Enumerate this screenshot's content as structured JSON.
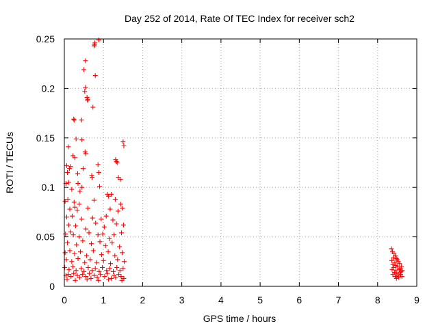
{
  "chart_data": {
    "type": "scatter",
    "title": "Day 252 of 2014, Rate Of TEC Index for receiver sch2",
    "xlabel": "GPS time / hours",
    "ylabel": "ROTI / TECUs",
    "xlim": [
      0,
      9
    ],
    "ylim": [
      0,
      0.25
    ],
    "grid": true,
    "marker": "+",
    "color": "#ff0000",
    "xticks": [
      {
        "value": 0,
        "label": "0"
      },
      {
        "value": 1,
        "label": "1"
      },
      {
        "value": 2,
        "label": "2"
      },
      {
        "value": 3,
        "label": "3"
      },
      {
        "value": 4,
        "label": "4"
      },
      {
        "value": 5,
        "label": "5"
      },
      {
        "value": 6,
        "label": "6"
      },
      {
        "value": 7,
        "label": "7"
      },
      {
        "value": 8,
        "label": "8"
      },
      {
        "value": 9,
        "label": "9"
      }
    ],
    "yticks": [
      {
        "value": 0,
        "label": "0"
      },
      {
        "value": 0.05,
        "label": "0.05"
      },
      {
        "value": 0.1,
        "label": "0.1"
      },
      {
        "value": 0.15,
        "label": "0.15"
      },
      {
        "value": 0.2,
        "label": "0.2"
      },
      {
        "value": 0.25,
        "label": "0.25"
      }
    ],
    "series": [
      {
        "name": "ROTI",
        "points": [
          [
            0.78,
            0.246
          ],
          [
            0.76,
            0.243
          ],
          [
            0.77,
            0.244
          ],
          [
            0.88,
            0.249
          ],
          [
            0.5,
            0.219
          ],
          [
            0.54,
            0.228
          ],
          [
            0.79,
            0.213
          ],
          [
            0.52,
            0.197
          ],
          [
            0.54,
            0.201
          ],
          [
            0.58,
            0.191
          ],
          [
            0.6,
            0.189
          ],
          [
            0.59,
            0.188
          ],
          [
            0.73,
            0.181
          ],
          [
            0.24,
            0.169
          ],
          [
            0.25,
            0.168
          ],
          [
            0.44,
            0.168
          ],
          [
            0.3,
            0.149
          ],
          [
            0.45,
            0.148
          ],
          [
            1.5,
            0.146
          ],
          [
            1.52,
            0.142
          ],
          [
            0.1,
            0.141
          ],
          [
            0.53,
            0.136
          ],
          [
            0.55,
            0.134
          ],
          [
            0.22,
            0.132
          ],
          [
            0.27,
            0.13
          ],
          [
            1.31,
            0.128
          ],
          [
            1.33,
            0.126
          ],
          [
            1.35,
            0.125
          ],
          [
            0.86,
            0.123
          ],
          [
            0.06,
            0.122
          ],
          [
            0.16,
            0.121
          ],
          [
            0.13,
            0.119
          ],
          [
            0.48,
            0.119
          ],
          [
            0.08,
            0.115
          ],
          [
            0.34,
            0.114
          ],
          [
            0.88,
            0.115
          ],
          [
            0.7,
            0.112
          ],
          [
            0.71,
            0.11
          ],
          [
            1.38,
            0.11
          ],
          [
            1.43,
            0.108
          ],
          [
            0.04,
            0.104
          ],
          [
            0.11,
            0.105
          ],
          [
            0.35,
            0.104
          ],
          [
            0.9,
            0.101
          ],
          [
            0.45,
            0.1
          ],
          [
            0.19,
            0.098
          ],
          [
            0.4,
            0.096
          ],
          [
            1.1,
            0.093
          ],
          [
            1.13,
            0.091
          ],
          [
            1.2,
            0.093
          ],
          [
            0.02,
            0.086
          ],
          [
            0.09,
            0.088
          ],
          [
            0.25,
            0.085
          ],
          [
            0.38,
            0.083
          ],
          [
            0.76,
            0.087
          ],
          [
            1.3,
            0.088
          ],
          [
            1.44,
            0.083
          ],
          [
            0.14,
            0.078
          ],
          [
            0.27,
            0.08
          ],
          [
            0.33,
            0.077
          ],
          [
            0.6,
            0.079
          ],
          [
            1.17,
            0.078
          ],
          [
            1.37,
            0.076
          ],
          [
            1.48,
            0.079
          ],
          [
            0.06,
            0.07
          ],
          [
            0.2,
            0.071
          ],
          [
            0.44,
            0.068
          ],
          [
            0.72,
            0.069
          ],
          [
            0.94,
            0.068
          ],
          [
            1.07,
            0.071
          ],
          [
            1.24,
            0.067
          ],
          [
            0.11,
            0.062
          ],
          [
            0.29,
            0.061
          ],
          [
            0.55,
            0.058
          ],
          [
            0.8,
            0.064
          ],
          [
            1.02,
            0.06
          ],
          [
            1.33,
            0.063
          ],
          [
            1.51,
            0.062
          ],
          [
            0.03,
            0.053
          ],
          [
            0.16,
            0.055
          ],
          [
            0.23,
            0.052
          ],
          [
            0.38,
            0.05
          ],
          [
            0.63,
            0.054
          ],
          [
            0.86,
            0.052
          ],
          [
            0.98,
            0.053
          ],
          [
            1.15,
            0.048
          ],
          [
            1.27,
            0.052
          ],
          [
            1.46,
            0.054
          ],
          [
            0.08,
            0.044
          ],
          [
            0.31,
            0.042
          ],
          [
            0.47,
            0.046
          ],
          [
            0.69,
            0.043
          ],
          [
            0.91,
            0.045
          ],
          [
            1.05,
            0.041
          ],
          [
            1.22,
            0.044
          ],
          [
            1.41,
            0.04
          ],
          [
            0.02,
            0.034
          ],
          [
            0.14,
            0.036
          ],
          [
            0.26,
            0.033
          ],
          [
            0.41,
            0.035
          ],
          [
            0.57,
            0.031
          ],
          [
            0.74,
            0.036
          ],
          [
            0.95,
            0.032
          ],
          [
            1.12,
            0.035
          ],
          [
            1.29,
            0.031
          ],
          [
            1.48,
            0.034
          ],
          [
            0.05,
            0.027
          ],
          [
            0.19,
            0.025
          ],
          [
            0.35,
            0.028
          ],
          [
            0.52,
            0.024
          ],
          [
            0.66,
            0.027
          ],
          [
            0.83,
            0.024
          ],
          [
            1.0,
            0.026
          ],
          [
            1.18,
            0.023
          ],
          [
            1.36,
            0.027
          ],
          [
            1.53,
            0.025
          ],
          [
            0.01,
            0.019
          ],
          [
            0.12,
            0.017
          ],
          [
            0.22,
            0.02
          ],
          [
            0.3,
            0.016
          ],
          [
            0.43,
            0.018
          ],
          [
            0.5,
            0.015
          ],
          [
            0.61,
            0.019
          ],
          [
            0.71,
            0.016
          ],
          [
            0.79,
            0.018
          ],
          [
            0.89,
            0.015
          ],
          [
            0.97,
            0.019
          ],
          [
            1.08,
            0.016
          ],
          [
            1.16,
            0.018
          ],
          [
            1.25,
            0.015
          ],
          [
            1.34,
            0.019
          ],
          [
            1.42,
            0.016
          ],
          [
            1.5,
            0.018
          ],
          [
            0.04,
            0.011
          ],
          [
            0.1,
            0.012
          ],
          [
            0.17,
            0.01
          ],
          [
            0.24,
            0.013
          ],
          [
            0.33,
            0.011
          ],
          [
            0.39,
            0.009
          ],
          [
            0.46,
            0.012
          ],
          [
            0.55,
            0.01
          ],
          [
            0.64,
            0.013
          ],
          [
            0.68,
            0.008
          ],
          [
            0.76,
            0.011
          ],
          [
            0.84,
            0.009
          ],
          [
            0.92,
            0.012
          ],
          [
            1.03,
            0.01
          ],
          [
            1.1,
            0.013
          ],
          [
            1.2,
            0.008
          ],
          [
            1.27,
            0.011
          ],
          [
            1.31,
            0.009
          ],
          [
            1.39,
            0.012
          ],
          [
            1.45,
            0.01
          ],
          [
            1.52,
            0.008
          ],
          [
            0.07,
            0.007
          ],
          [
            0.28,
            0.006
          ],
          [
            0.58,
            0.007
          ],
          [
            0.87,
            0.006
          ],
          [
            1.13,
            0.007
          ],
          [
            1.47,
            0.006
          ],
          [
            8.35,
            0.038
          ],
          [
            8.38,
            0.035
          ],
          [
            8.42,
            0.033
          ],
          [
            8.45,
            0.031
          ],
          [
            8.4,
            0.029
          ],
          [
            8.48,
            0.028
          ],
          [
            8.36,
            0.026
          ],
          [
            8.5,
            0.027
          ],
          [
            8.44,
            0.024
          ],
          [
            8.53,
            0.025
          ],
          [
            8.39,
            0.022
          ],
          [
            8.47,
            0.021
          ],
          [
            8.56,
            0.023
          ],
          [
            8.41,
            0.019
          ],
          [
            8.51,
            0.02
          ],
          [
            8.58,
            0.018
          ],
          [
            8.37,
            0.017
          ],
          [
            8.46,
            0.016
          ],
          [
            8.55,
            0.017
          ],
          [
            8.6,
            0.015
          ],
          [
            8.43,
            0.014
          ],
          [
            8.49,
            0.013
          ],
          [
            8.57,
            0.014
          ],
          [
            8.39,
            0.012
          ],
          [
            8.52,
            0.011
          ],
          [
            8.59,
            0.012
          ],
          [
            8.45,
            0.01
          ],
          [
            8.54,
            0.009
          ],
          [
            8.62,
            0.01
          ],
          [
            8.48,
            0.008
          ],
          [
            8.61,
            0.02
          ],
          [
            8.63,
            0.016
          ]
        ]
      }
    ]
  }
}
